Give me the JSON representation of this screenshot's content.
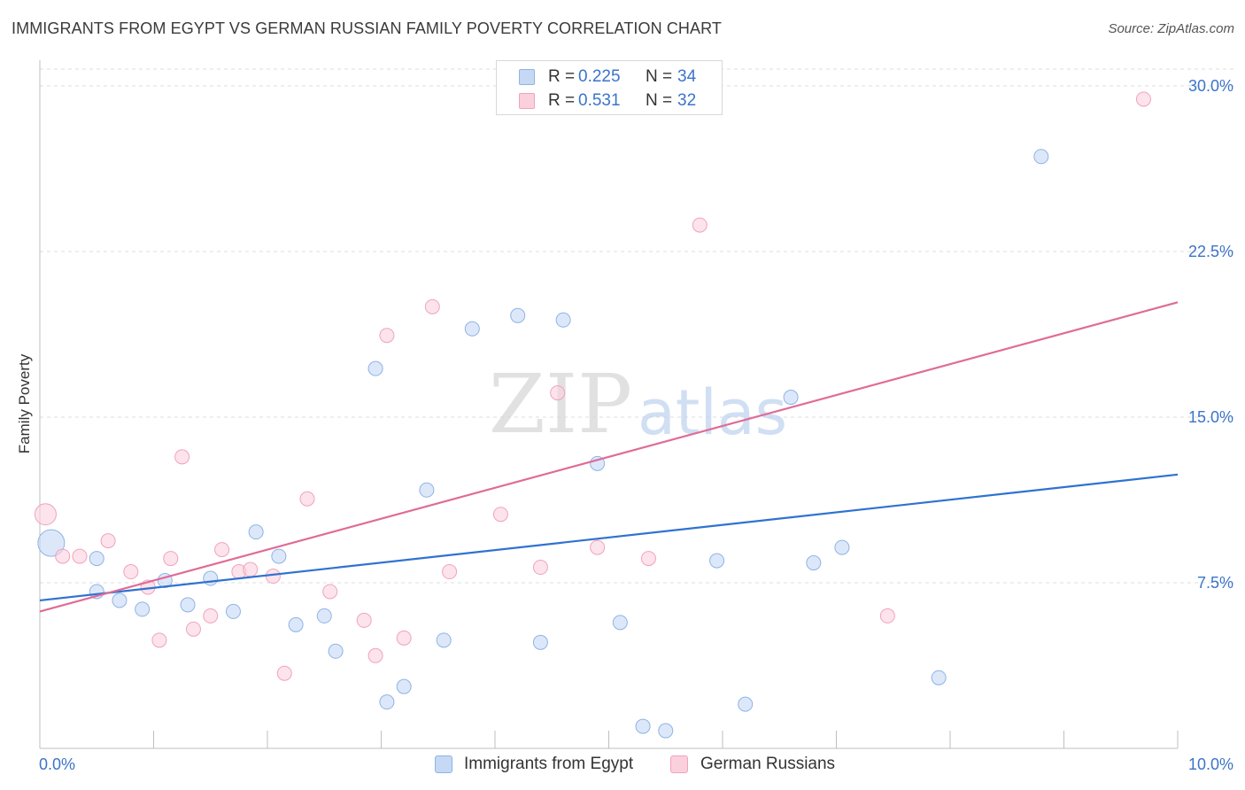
{
  "header": {
    "title": "IMMIGRANTS FROM EGYPT VS GERMAN RUSSIAN FAMILY POVERTY CORRELATION CHART",
    "source": "Source: ZipAtlas.com"
  },
  "watermark": {
    "zip": "ZIP",
    "atlas": "atlas"
  },
  "legend": {
    "series1": {
      "r_label": "R =",
      "r_value": "0.225",
      "n_label": "N =",
      "n_value": "34"
    },
    "series2": {
      "r_label": "R =",
      "r_value": "0.531",
      "n_label": "N =",
      "n_value": "32"
    }
  },
  "colors": {
    "blue_fill": "#c5d9f5",
    "blue_stroke": "#8fb3e6",
    "blue_line": "#2f72d0",
    "pink_fill": "#fbd0dd",
    "pink_stroke": "#f0a3bb",
    "pink_line": "#e06b96",
    "tick_label": "#3b74c9",
    "grid": "#dddddd"
  },
  "chart_data": {
    "type": "scatter",
    "title": "IMMIGRANTS FROM EGYPT VS GERMAN RUSSIAN FAMILY POVERTY CORRELATION CHART",
    "xlabel": "",
    "ylabel": "Family Poverty",
    "xlim": [
      0,
      10
    ],
    "ylim": [
      0,
      30.5
    ],
    "x_tick_labels": [
      {
        "value": 0,
        "label": "0.0%"
      },
      {
        "value": 10,
        "label": "10.0%"
      }
    ],
    "y_tick_labels": [
      {
        "value": 7.5,
        "label": "7.5%"
      },
      {
        "value": 15,
        "label": "15.0%"
      },
      {
        "value": 22.5,
        "label": "22.5%"
      },
      {
        "value": 30,
        "label": "30.0%"
      }
    ],
    "legend_position": "top-center",
    "series": [
      {
        "name": "Immigrants from Egypt",
        "color": "#8fb3e6",
        "trend": {
          "x": [
            0,
            10
          ],
          "y": [
            6.7,
            12.4
          ]
        },
        "points": [
          {
            "x": 0.1,
            "y": 9.3,
            "size": "large"
          },
          {
            "x": 0.5,
            "y": 8.6
          },
          {
            "x": 0.5,
            "y": 7.1
          },
          {
            "x": 0.7,
            "y": 6.7
          },
          {
            "x": 0.9,
            "y": 6.3
          },
          {
            "x": 1.1,
            "y": 7.6
          },
          {
            "x": 1.3,
            "y": 6.5
          },
          {
            "x": 1.5,
            "y": 7.7
          },
          {
            "x": 1.7,
            "y": 6.2
          },
          {
            "x": 1.9,
            "y": 9.8
          },
          {
            "x": 2.1,
            "y": 8.7
          },
          {
            "x": 2.25,
            "y": 5.6
          },
          {
            "x": 2.5,
            "y": 6.0
          },
          {
            "x": 2.6,
            "y": 4.4
          },
          {
            "x": 2.95,
            "y": 17.2
          },
          {
            "x": 3.05,
            "y": 2.1
          },
          {
            "x": 3.2,
            "y": 2.8
          },
          {
            "x": 3.4,
            "y": 11.7
          },
          {
            "x": 3.55,
            "y": 4.9
          },
          {
            "x": 3.8,
            "y": 19.0
          },
          {
            "x": 4.2,
            "y": 19.6
          },
          {
            "x": 4.4,
            "y": 4.8
          },
          {
            "x": 4.6,
            "y": 19.4
          },
          {
            "x": 4.9,
            "y": 12.9
          },
          {
            "x": 5.1,
            "y": 5.7
          },
          {
            "x": 5.3,
            "y": 1.0
          },
          {
            "x": 5.5,
            "y": 0.8
          },
          {
            "x": 5.95,
            "y": 8.5
          },
          {
            "x": 6.2,
            "y": 2.0
          },
          {
            "x": 6.6,
            "y": 15.9
          },
          {
            "x": 6.8,
            "y": 8.4
          },
          {
            "x": 7.05,
            "y": 9.1
          },
          {
            "x": 7.9,
            "y": 3.2
          },
          {
            "x": 8.8,
            "y": 26.8
          }
        ]
      },
      {
        "name": "German Russians",
        "color": "#f0a3bb",
        "trend": {
          "x": [
            0,
            10
          ],
          "y": [
            6.2,
            20.2
          ]
        },
        "points": [
          {
            "x": 0.05,
            "y": 10.6,
            "size": "medium"
          },
          {
            "x": 0.2,
            "y": 8.7
          },
          {
            "x": 0.35,
            "y": 8.7
          },
          {
            "x": 0.6,
            "y": 9.4
          },
          {
            "x": 0.8,
            "y": 8.0
          },
          {
            "x": 0.95,
            "y": 7.3
          },
          {
            "x": 1.15,
            "y": 8.6
          },
          {
            "x": 1.05,
            "y": 4.9
          },
          {
            "x": 1.25,
            "y": 13.2
          },
          {
            "x": 1.35,
            "y": 5.4
          },
          {
            "x": 1.5,
            "y": 6.0
          },
          {
            "x": 1.6,
            "y": 9.0
          },
          {
            "x": 1.75,
            "y": 8.0
          },
          {
            "x": 1.85,
            "y": 8.1
          },
          {
            "x": 2.05,
            "y": 7.8
          },
          {
            "x": 2.15,
            "y": 3.4
          },
          {
            "x": 2.35,
            "y": 11.3
          },
          {
            "x": 2.55,
            "y": 7.1
          },
          {
            "x": 2.85,
            "y": 5.8
          },
          {
            "x": 2.95,
            "y": 4.2
          },
          {
            "x": 3.05,
            "y": 18.7
          },
          {
            "x": 3.2,
            "y": 5.0
          },
          {
            "x": 3.45,
            "y": 20.0
          },
          {
            "x": 3.6,
            "y": 8.0
          },
          {
            "x": 4.05,
            "y": 10.6
          },
          {
            "x": 4.4,
            "y": 8.2
          },
          {
            "x": 4.55,
            "y": 16.1
          },
          {
            "x": 4.9,
            "y": 9.1
          },
          {
            "x": 5.35,
            "y": 8.6
          },
          {
            "x": 5.8,
            "y": 23.7
          },
          {
            "x": 7.45,
            "y": 6.0
          },
          {
            "x": 9.7,
            "y": 29.4
          }
        ]
      }
    ]
  }
}
